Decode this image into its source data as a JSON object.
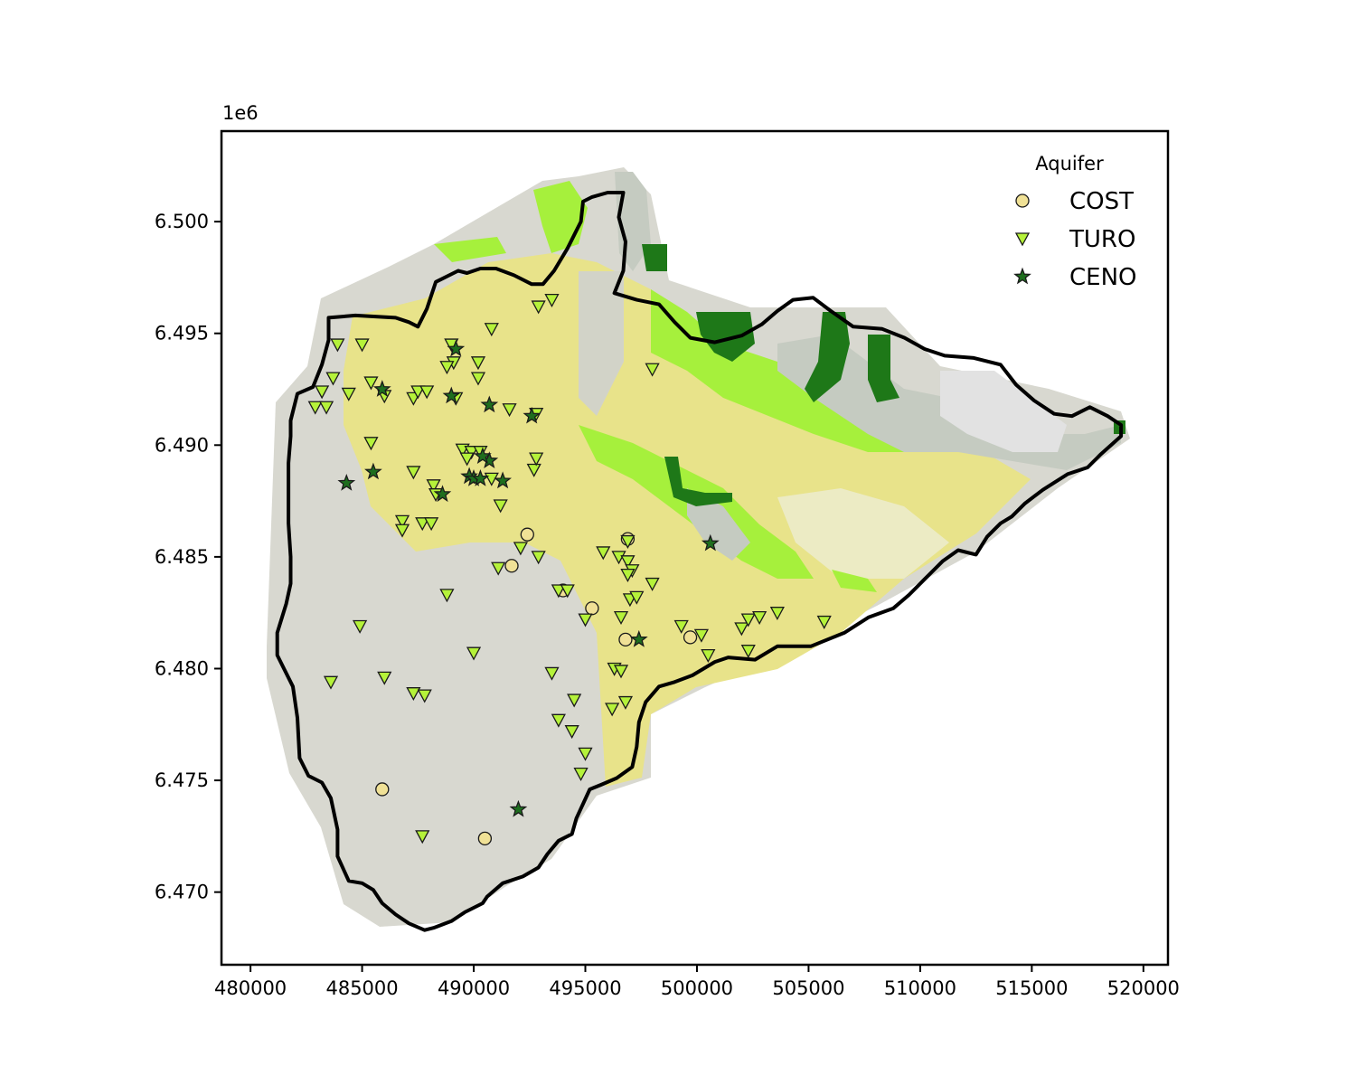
{
  "chart_data": {
    "type": "scatter",
    "title": "",
    "xlabel": "",
    "ylabel": "",
    "offset_text": "1e6",
    "xlim": [
      478700,
      521100
    ],
    "ylim": [
      6466750,
      6504050
    ],
    "xticks": [
      480000,
      485000,
      490000,
      495000,
      500000,
      505000,
      510000,
      515000,
      520000
    ],
    "yticks": [
      6470000,
      6475000,
      6480000,
      6485000,
      6490000,
      6495000,
      6500000
    ],
    "ytick_labels": [
      "6.470",
      "6.475",
      "6.480",
      "6.485",
      "6.490",
      "6.495",
      "6.500"
    ],
    "grid": false,
    "legend": {
      "title": "Aquifer",
      "placement": "top-right",
      "entries": [
        "COST",
        "TURO",
        "CENO"
      ]
    },
    "colors": {
      "COST": "#f0e196",
      "TURO": "#b5f23a",
      "CENO": "#1e6e1e",
      "boundary": "#000000"
    },
    "boundary": [
      [
        481800,
        6491100
      ],
      [
        482100,
        6492300
      ],
      [
        482800,
        6492600
      ],
      [
        483200,
        6493600
      ],
      [
        483500,
        6494700
      ],
      [
        483500,
        6495700
      ],
      [
        484700,
        6495800
      ],
      [
        486500,
        6495700
      ],
      [
        487100,
        6495500
      ],
      [
        487500,
        6495300
      ],
      [
        487900,
        6496100
      ],
      [
        488300,
        6497300
      ],
      [
        489300,
        6497800
      ],
      [
        489700,
        6497700
      ],
      [
        490300,
        6497900
      ],
      [
        491000,
        6497900
      ],
      [
        491800,
        6497600
      ],
      [
        492600,
        6497200
      ],
      [
        493100,
        6497200
      ],
      [
        493600,
        6497800
      ],
      [
        494200,
        6498800
      ],
      [
        494800,
        6500000
      ],
      [
        494900,
        6500900
      ],
      [
        495300,
        6501100
      ],
      [
        496000,
        6501300
      ],
      [
        496700,
        6501300
      ],
      [
        496500,
        6500200
      ],
      [
        496800,
        6499100
      ],
      [
        496700,
        6497800
      ],
      [
        496300,
        6496800
      ],
      [
        497300,
        6496500
      ],
      [
        498300,
        6496300
      ],
      [
        499000,
        6495500
      ],
      [
        499700,
        6494800
      ],
      [
        500800,
        6494600
      ],
      [
        502000,
        6494900
      ],
      [
        502900,
        6495400
      ],
      [
        503600,
        6496000
      ],
      [
        504300,
        6496500
      ],
      [
        505200,
        6496600
      ],
      [
        506000,
        6496000
      ],
      [
        507000,
        6495300
      ],
      [
        508300,
        6495200
      ],
      [
        509300,
        6494800
      ],
      [
        510200,
        6494300
      ],
      [
        511100,
        6494000
      ],
      [
        512400,
        6493900
      ],
      [
        513600,
        6493600
      ],
      [
        514300,
        6492700
      ],
      [
        515100,
        6492000
      ],
      [
        516000,
        6491400
      ],
      [
        516800,
        6491300
      ],
      [
        517600,
        6491700
      ],
      [
        518400,
        6491300
      ],
      [
        519000,
        6490900
      ],
      [
        519000,
        6490400
      ],
      [
        518100,
        6489600
      ],
      [
        517500,
        6489000
      ],
      [
        516600,
        6488700
      ],
      [
        515500,
        6488000
      ],
      [
        514700,
        6487400
      ],
      [
        514100,
        6486800
      ],
      [
        513600,
        6486500
      ],
      [
        513000,
        6485900
      ],
      [
        512500,
        6485100
      ],
      [
        511700,
        6485300
      ],
      [
        511000,
        6484800
      ],
      [
        510200,
        6484000
      ],
      [
        509500,
        6483300
      ],
      [
        508800,
        6482700
      ],
      [
        507700,
        6482300
      ],
      [
        506600,
        6481600
      ],
      [
        505100,
        6481000
      ],
      [
        503600,
        6481000
      ],
      [
        502600,
        6480400
      ],
      [
        501400,
        6480500
      ],
      [
        500800,
        6480300
      ],
      [
        499800,
        6479700
      ],
      [
        499000,
        6479400
      ],
      [
        498300,
        6479200
      ],
      [
        497700,
        6478500
      ],
      [
        497400,
        6477600
      ],
      [
        497300,
        6476500
      ],
      [
        497100,
        6475600
      ],
      [
        496400,
        6475100
      ],
      [
        495700,
        6474800
      ],
      [
        495200,
        6474600
      ],
      [
        494600,
        6473300
      ],
      [
        494400,
        6472600
      ],
      [
        493800,
        6472300
      ],
      [
        493300,
        6471700
      ],
      [
        492900,
        6471100
      ],
      [
        492200,
        6470700
      ],
      [
        491300,
        6470400
      ],
      [
        490600,
        6469800
      ],
      [
        490400,
        6469500
      ],
      [
        489600,
        6469100
      ],
      [
        489000,
        6468700
      ],
      [
        488200,
        6468400
      ],
      [
        487800,
        6468300
      ],
      [
        487100,
        6468600
      ],
      [
        486500,
        6469000
      ],
      [
        485900,
        6469500
      ],
      [
        485500,
        6470100
      ],
      [
        485000,
        6470400
      ],
      [
        484400,
        6470500
      ],
      [
        483900,
        6471600
      ],
      [
        483900,
        6472800
      ],
      [
        483600,
        6474200
      ],
      [
        483200,
        6474900
      ],
      [
        482600,
        6475200
      ],
      [
        482200,
        6476000
      ],
      [
        482100,
        6477800
      ],
      [
        481900,
        6479200
      ],
      [
        481500,
        6480000
      ],
      [
        481200,
        6480600
      ],
      [
        481200,
        6481600
      ],
      [
        481600,
        6482900
      ],
      [
        481800,
        6483800
      ],
      [
        481800,
        6485000
      ],
      [
        481700,
        6486500
      ],
      [
        481700,
        6487900
      ],
      [
        481700,
        6489200
      ],
      [
        481800,
        6490400
      ]
    ],
    "series": [
      {
        "name": "COST",
        "marker": "circle",
        "points": [
          [
            492400,
            6486000
          ],
          [
            491700,
            6484600
          ],
          [
            495300,
            6482700
          ],
          [
            496900,
            6485800
          ],
          [
            496800,
            6481300
          ],
          [
            499700,
            6481400
          ],
          [
            494000,
            6483500
          ],
          [
            485900,
            6474600
          ],
          [
            490500,
            6472400
          ]
        ]
      },
      {
        "name": "TURO",
        "marker": "triangle-down",
        "points": [
          [
            483900,
            6494500
          ],
          [
            485000,
            6494500
          ],
          [
            483700,
            6493000
          ],
          [
            483200,
            6492400
          ],
          [
            482900,
            6491700
          ],
          [
            483400,
            6491700
          ],
          [
            484400,
            6492300
          ],
          [
            485400,
            6492800
          ],
          [
            486000,
            6492200
          ],
          [
            487300,
            6492100
          ],
          [
            487500,
            6492400
          ],
          [
            487900,
            6492400
          ],
          [
            489000,
            6494500
          ],
          [
            489100,
            6493700
          ],
          [
            488800,
            6493500
          ],
          [
            490200,
            6493700
          ],
          [
            490200,
            6493000
          ],
          [
            490800,
            6495200
          ],
          [
            492900,
            6496200
          ],
          [
            493500,
            6496500
          ],
          [
            489200,
            6492100
          ],
          [
            491600,
            6491600
          ],
          [
            492800,
            6491400
          ],
          [
            485400,
            6490100
          ],
          [
            487300,
            6488800
          ],
          [
            488200,
            6488200
          ],
          [
            488300,
            6487800
          ],
          [
            489500,
            6489800
          ],
          [
            489900,
            6489700
          ],
          [
            489700,
            6489400
          ],
          [
            490300,
            6489700
          ],
          [
            490800,
            6488500
          ],
          [
            491200,
            6487300
          ],
          [
            492700,
            6488900
          ],
          [
            492800,
            6489400
          ],
          [
            486800,
            6486600
          ],
          [
            486800,
            6486200
          ],
          [
            487700,
            6486500
          ],
          [
            488100,
            6486500
          ],
          [
            491100,
            6484500
          ],
          [
            492100,
            6485400
          ],
          [
            492900,
            6485000
          ],
          [
            488800,
            6483300
          ],
          [
            484900,
            6481900
          ],
          [
            483600,
            6479400
          ],
          [
            486000,
            6479600
          ],
          [
            487300,
            6478900
          ],
          [
            487800,
            6478800
          ],
          [
            490000,
            6480700
          ],
          [
            493800,
            6483500
          ],
          [
            494200,
            6483500
          ],
          [
            495800,
            6485200
          ],
          [
            496500,
            6485000
          ],
          [
            496900,
            6485700
          ],
          [
            496900,
            6484800
          ],
          [
            497100,
            6484400
          ],
          [
            496900,
            6484200
          ],
          [
            498000,
            6483800
          ],
          [
            497000,
            6483100
          ],
          [
            497300,
            6483200
          ],
          [
            496600,
            6482300
          ],
          [
            495000,
            6482200
          ],
          [
            499300,
            6481900
          ],
          [
            500200,
            6481500
          ],
          [
            500500,
            6480600
          ],
          [
            502000,
            6481800
          ],
          [
            502300,
            6482200
          ],
          [
            502800,
            6482300
          ],
          [
            503600,
            6482500
          ],
          [
            505700,
            6482100
          ],
          [
            502300,
            6480800
          ],
          [
            496300,
            6480000
          ],
          [
            496600,
            6479900
          ],
          [
            493500,
            6479800
          ],
          [
            494500,
            6478600
          ],
          [
            496200,
            6478200
          ],
          [
            496800,
            6478500
          ],
          [
            493800,
            6477700
          ],
          [
            494400,
            6477200
          ],
          [
            495000,
            6476200
          ],
          [
            494800,
            6475300
          ],
          [
            487700,
            6472500
          ],
          [
            498000,
            6493400
          ]
        ]
      },
      {
        "name": "CENO",
        "marker": "star",
        "points": [
          [
            489200,
            6494300
          ],
          [
            485900,
            6492500
          ],
          [
            489000,
            6492200
          ],
          [
            490700,
            6491800
          ],
          [
            492600,
            6491300
          ],
          [
            490700,
            6489300
          ],
          [
            490400,
            6489500
          ],
          [
            489800,
            6488600
          ],
          [
            490000,
            6488500
          ],
          [
            490300,
            6488500
          ],
          [
            491300,
            6488400
          ],
          [
            488600,
            6487800
          ],
          [
            485500,
            6488800
          ],
          [
            484300,
            6488300
          ],
          [
            500600,
            6485600
          ],
          [
            497400,
            6481300
          ],
          [
            492000,
            6473700
          ]
        ]
      }
    ]
  }
}
